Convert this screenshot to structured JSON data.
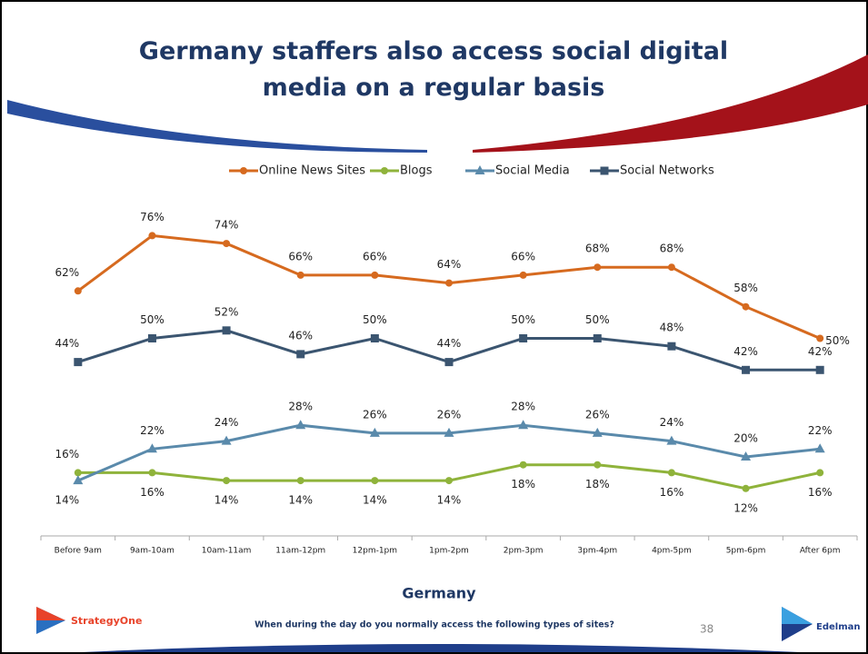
{
  "chart_data": {
    "type": "line",
    "title": "Germany staffers also access social digital media on a regular basis",
    "x_label": "Germany",
    "categories": [
      "Before 9am",
      "9am-10am",
      "10am-11am",
      "11am-12pm",
      "12pm-1pm",
      "1pm-2pm",
      "2pm-3pm",
      "3pm-4pm",
      "4pm-5pm",
      "5pm-6pm",
      "After 6pm"
    ],
    "series": [
      {
        "name": "Online News Sites",
        "color": "#d66a1f",
        "marker": "circle",
        "values": [
          62,
          76,
          74,
          66,
          66,
          64,
          66,
          68,
          68,
          58,
          50
        ],
        "value_labels": [
          "62%",
          "76%",
          "74%",
          "66%",
          "66%",
          "64%",
          "66%",
          "68%",
          "68%",
          "58%",
          "50%"
        ]
      },
      {
        "name": "Blogs",
        "color": "#8fb33b",
        "marker": "circle",
        "values": [
          16,
          16,
          14,
          14,
          14,
          14,
          18,
          18,
          16,
          12,
          16
        ],
        "value_labels": [
          "16%",
          "16%",
          "14%",
          "14%",
          "14%",
          "14%",
          "18%",
          "18%",
          "16%",
          "12%",
          "16%"
        ]
      },
      {
        "name": "Social Media",
        "color": "#5a8aab",
        "marker": "triangle",
        "values": [
          14,
          22,
          24,
          28,
          26,
          26,
          28,
          26,
          24,
          20,
          22
        ],
        "value_labels": [
          "14%",
          "22%",
          "24%",
          "28%",
          "26%",
          "26%",
          "28%",
          "26%",
          "24%",
          "20%",
          "22%"
        ]
      },
      {
        "name": "Social Networks",
        "color": "#3b5570",
        "marker": "square",
        "values": [
          44,
          50,
          52,
          46,
          50,
          44,
          50,
          50,
          48,
          42,
          42
        ],
        "value_labels": [
          "44%",
          "50%",
          "52%",
          "46%",
          "50%",
          "44%",
          "50%",
          "50%",
          "48%",
          "42%",
          "42%"
        ]
      }
    ],
    "legend": "top"
  },
  "footer": {
    "question": "When during the day do you normally access the following types of sites?",
    "page_number": "38",
    "left_logo": "StrategyOne",
    "right_logo": "Edelman"
  }
}
